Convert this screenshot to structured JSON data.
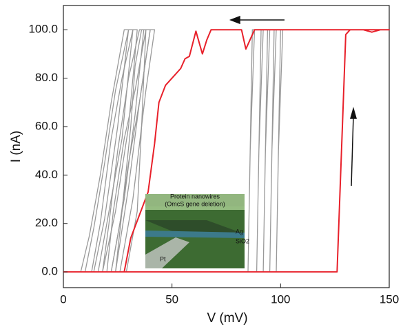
{
  "chart_data": {
    "type": "line",
    "x_label": "V (mV)",
    "y_label": "I (nA)",
    "xlim": [
      0,
      150
    ],
    "ylim": [
      -6.5,
      110
    ],
    "xticks": [
      0,
      50,
      100,
      150
    ],
    "yticks": [
      {
        "value": 0,
        "label": "0.0"
      },
      {
        "value": 20,
        "label": "20.0"
      },
      {
        "value": 40,
        "label": "40.0"
      },
      {
        "value": 60,
        "label": "60.0"
      },
      {
        "value": 80,
        "label": "80.0"
      },
      {
        "value": 100,
        "label": "100.0"
      }
    ],
    "series": [
      {
        "color": "#999999",
        "x": [
          27,
          29,
          34,
          36,
          38,
          36,
          33,
          31,
          27,
          24
        ],
        "values": [
          0,
          0,
          25,
          60,
          100,
          100,
          85,
          60,
          25,
          0
        ]
      },
      {
        "color": "#999999",
        "x": [
          20,
          22,
          28,
          33,
          37,
          35,
          30,
          25,
          21,
          18
        ],
        "values": [
          0,
          0,
          30,
          65,
          100,
          100,
          80,
          50,
          20,
          0
        ]
      },
      {
        "color": "#999999",
        "x": [
          22,
          24,
          30,
          35,
          40,
          38,
          33,
          28,
          23,
          20
        ],
        "values": [
          0,
          0,
          35,
          70,
          100,
          100,
          75,
          55,
          25,
          0
        ]
      },
      {
        "color": "#999999",
        "x": [
          16,
          18,
          24,
          30,
          34,
          32,
          27,
          22,
          17,
          13
        ],
        "values": [
          0,
          0,
          25,
          60,
          100,
          100,
          80,
          55,
          20,
          0
        ]
      },
      {
        "color": "#999999",
        "x": [
          14,
          16,
          21,
          27,
          32,
          30,
          24,
          19,
          14,
          10
        ],
        "values": [
          0,
          0,
          25,
          55,
          100,
          100,
          75,
          45,
          18,
          0
        ]
      },
      {
        "color": "#999999",
        "x": [
          12,
          14,
          19,
          25,
          30,
          28,
          22,
          17,
          12,
          8
        ],
        "values": [
          0,
          0,
          22,
          60,
          100,
          100,
          70,
          40,
          15,
          0
        ]
      },
      {
        "color": "#999999",
        "x": [
          24,
          26,
          32,
          38,
          42,
          40,
          35,
          30,
          26,
          22
        ],
        "values": [
          0,
          0,
          30,
          75,
          100,
          100,
          70,
          45,
          20,
          0
        ]
      },
      {
        "color": "#999999",
        "x": [
          85,
          87,
          105,
          88,
          86,
          85
        ],
        "values": [
          0,
          100,
          100,
          100,
          50,
          0
        ]
      },
      {
        "color": "#999999",
        "x": [
          89,
          91,
          104,
          92,
          90,
          89
        ],
        "values": [
          0,
          100,
          100,
          100,
          50,
          0
        ]
      },
      {
        "color": "#999999",
        "x": [
          92,
          94,
          103,
          95,
          93,
          92
        ],
        "values": [
          0,
          100,
          100,
          100,
          50,
          0
        ]
      },
      {
        "color": "#999999",
        "x": [
          95,
          97,
          102,
          98,
          96,
          95
        ],
        "values": [
          0,
          100,
          100,
          100,
          50,
          0
        ]
      },
      {
        "color": "#999999",
        "x": [
          98,
          100,
          104,
          101,
          99,
          98
        ],
        "values": [
          0,
          100,
          100,
          100,
          50,
          0
        ]
      },
      {
        "color": "#e8202a",
        "x": [
          0,
          126,
          130,
          132,
          138,
          142,
          146,
          150,
          120,
          100,
          88,
          86,
          84,
          82,
          68,
          66,
          64,
          61,
          58,
          56,
          54,
          47,
          44,
          42,
          39,
          31,
          28,
          0
        ],
        "values": [
          0,
          0,
          98,
          100,
          100,
          99,
          100,
          100,
          100,
          100,
          100,
          96,
          92,
          100,
          100,
          95.7,
          90,
          99.4,
          89,
          88,
          84,
          77,
          70,
          53,
          33,
          14,
          0,
          0
        ]
      }
    ],
    "inset": {
      "title": "Protein nanowires",
      "subtitle": "(OmcS gene deletion)",
      "labels": [
        "Ag",
        "SiO2",
        "Pt"
      ]
    }
  }
}
